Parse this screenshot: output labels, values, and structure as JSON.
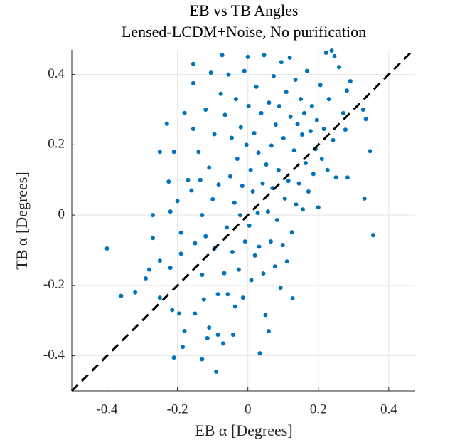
{
  "chart_data": {
    "type": "scatter",
    "title": "EB vs TB Angles",
    "subtitle": "Lensed-LCDM+Noise, No purification",
    "x_label": "EB α [Degrees]",
    "y_label": "TB α [Degrees]",
    "xlim": [
      -0.5,
      0.475
    ],
    "ylim": [
      -0.5,
      0.47
    ],
    "xticks": [
      -0.4,
      -0.2,
      0,
      0.2,
      0.4
    ],
    "yticks": [
      -0.4,
      -0.2,
      0,
      0.2,
      0.4
    ],
    "grid": true,
    "diagonal": true,
    "series": [
      {
        "color": "#0072bd",
        "x": [
          -0.4,
          -0.36,
          -0.32,
          -0.29,
          -0.28,
          -0.27,
          -0.27,
          -0.25,
          -0.25,
          -0.25,
          -0.23,
          -0.225,
          -0.22,
          -0.22,
          -0.215,
          -0.21,
          -0.21,
          -0.2,
          -0.195,
          -0.19,
          -0.19,
          -0.185,
          -0.18,
          -0.18,
          -0.17,
          -0.16,
          -0.155,
          -0.155,
          -0.15,
          -0.155,
          -0.15,
          -0.14,
          -0.135,
          -0.13,
          -0.13,
          -0.13,
          -0.125,
          -0.12,
          -0.12,
          -0.115,
          -0.11,
          -0.11,
          -0.105,
          -0.1,
          -0.095,
          -0.095,
          -0.09,
          -0.085,
          -0.085,
          -0.083,
          -0.077,
          -0.073,
          -0.07,
          -0.067,
          -0.065,
          -0.06,
          -0.057,
          -0.055,
          -0.05,
          -0.046,
          -0.044,
          -0.042,
          -0.038,
          -0.036,
          -0.034,
          -0.03,
          -0.026,
          -0.022,
          -0.02,
          -0.016,
          -0.014,
          -0.01,
          -0.008,
          -0.004,
          0,
          0.002,
          0.004,
          0.008,
          0.01,
          0.014,
          0.018,
          0.02,
          0.024,
          0.028,
          0.03,
          0.032,
          0.034,
          0.038,
          0.042,
          0.044,
          0.046,
          0.05,
          0.052,
          0.057,
          0.059,
          0.06,
          0.065,
          0.067,
          0.07,
          0.073,
          0.077,
          0.079,
          0.083,
          0.087,
          0.089,
          0.093,
          0.095,
          0.099,
          0.101,
          0.105,
          0.109,
          0.111,
          0.115,
          0.119,
          0.121,
          0.125,
          0.127,
          0.131,
          0.135,
          0.137,
          0.141,
          0.145,
          0.15,
          0.154,
          0.156,
          0.16,
          0.164,
          0.168,
          0.172,
          0.178,
          0.182,
          0.186,
          0.192,
          0.196,
          0.2,
          0.206,
          0.21,
          0.216,
          0.222,
          0.226,
          0.23,
          0.238,
          0.242,
          0.246,
          0.25,
          0.259,
          0.271,
          0.277,
          0.281,
          0.283,
          0.291,
          0.327,
          0.331,
          0.335,
          0.347,
          0.356
        ],
        "y": [
          -0.095,
          -0.23,
          -0.22,
          -0.18,
          -0.155,
          -0.065,
          0,
          -0.235,
          -0.13,
          0.18,
          0.26,
          0.095,
          0.01,
          -0.15,
          -0.27,
          -0.405,
          0.18,
          0.04,
          -0.28,
          -0.11,
          -0.05,
          -0.375,
          -0.33,
          0.29,
          0.1,
          0.07,
          0.375,
          0.43,
          -0.28,
          0.245,
          -0.08,
          0.18,
          0.1,
          0,
          -0.17,
          -0.41,
          -0.24,
          0.3,
          -0.06,
          -0.35,
          -0.32,
          0.135,
          0.405,
          0.045,
          -0.095,
          0.23,
          -0.445,
          -0.225,
          -0.34,
          0.087,
          0.345,
          0.455,
          -0.365,
          -0.165,
          0.285,
          -0.035,
          -0.225,
          0.4,
          0.11,
          0.22,
          -0.105,
          -0.34,
          0.035,
          -0.26,
          0.33,
          0.16,
          -0.155,
          0,
          0.25,
          0.083,
          -0.235,
          0.41,
          -0.075,
          0.2,
          0.45,
          0.31,
          -0.03,
          0.128,
          -0.185,
          0.067,
          0.233,
          -0.115,
          0.365,
          0.006,
          0.178,
          -0.09,
          -0.393,
          0.29,
          0.09,
          -0.166,
          0.455,
          -0.284,
          0.144,
          0.01,
          -0.33,
          0.32,
          -0.075,
          0.198,
          0.077,
          0.395,
          -0.146,
          0.257,
          -0.014,
          0.128,
          0.31,
          -0.207,
          0.435,
          -0.085,
          0.219,
          0.047,
          0.35,
          -0.132,
          0.097,
          0.448,
          0.28,
          -0.049,
          -0.237,
          0.184,
          0.385,
          0.03,
          0.259,
          0.09,
          0.33,
          0.229,
          0.016,
          0.29,
          0.148,
          0.41,
          0.067,
          0.239,
          0.31,
          0.117,
          0.188,
          0.27,
          0.022,
          0.37,
          0.16,
          0.245,
          0.462,
          0.128,
          0.33,
          0.468,
          0.213,
          0.452,
          0.107,
          0.421,
          0.29,
          0.243,
          0.354,
          0.107,
          0.381,
          0.3,
          0.047,
          0.273,
          0.182,
          -0.057
        ]
      }
    ]
  }
}
